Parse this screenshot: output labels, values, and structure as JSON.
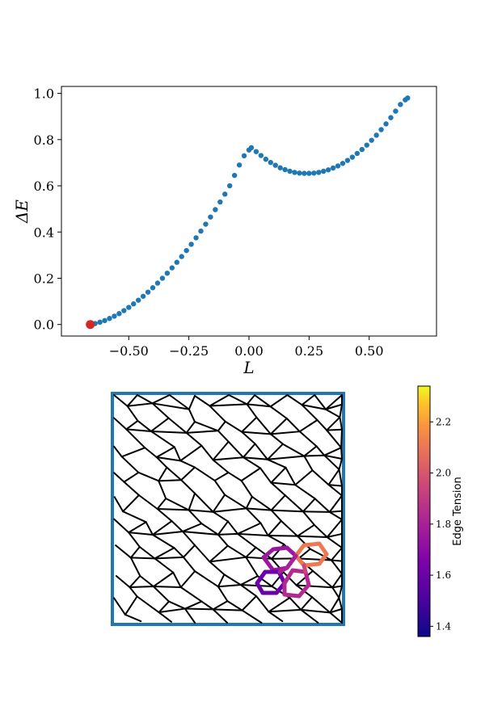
{
  "chart_data": [
    {
      "type": "scatter",
      "title": "",
      "xlabel": "L",
      "ylabel": "ΔE",
      "xlim": [
        -0.78,
        0.78
      ],
      "ylim": [
        -0.05,
        1.03
      ],
      "xticks": [
        -0.5,
        -0.25,
        0.0,
        0.25,
        0.5
      ],
      "xtick_labels": [
        "−0.50",
        "−0.25",
        "0.00",
        "0.25",
        "0.50"
      ],
      "yticks": [
        0.0,
        0.2,
        0.4,
        0.6,
        0.8,
        1.0
      ],
      "ytick_labels": [
        "0.0",
        "0.2",
        "0.4",
        "0.6",
        "0.8",
        "1.0"
      ],
      "grid": false,
      "series": [
        {
          "color": "#1f77b4",
          "x": [
            -0.66,
            -0.64,
            -0.62,
            -0.6,
            -0.58,
            -0.56,
            -0.54,
            -0.52,
            -0.5,
            -0.48,
            -0.46,
            -0.44,
            -0.42,
            -0.4,
            -0.38,
            -0.36,
            -0.34,
            -0.32,
            -0.3,
            -0.28,
            -0.26,
            -0.24,
            -0.22,
            -0.2,
            -0.18,
            -0.16,
            -0.14,
            -0.12,
            -0.1,
            -0.08,
            -0.06,
            -0.04,
            -0.02,
            0.0,
            0.01,
            0.03,
            0.05,
            0.07,
            0.09,
            0.11,
            0.13,
            0.15,
            0.17,
            0.19,
            0.21,
            0.23,
            0.25,
            0.27,
            0.29,
            0.31,
            0.33,
            0.35,
            0.37,
            0.39,
            0.41,
            0.43,
            0.45,
            0.47,
            0.49,
            0.51,
            0.53,
            0.55,
            0.57,
            0.59,
            0.61,
            0.63,
            0.65,
            0.66
          ],
          "y": [
            0.0,
            0.004,
            0.01,
            0.017,
            0.026,
            0.036,
            0.047,
            0.06,
            0.074,
            0.089,
            0.105,
            0.122,
            0.14,
            0.159,
            0.179,
            0.2,
            0.222,
            0.245,
            0.269,
            0.294,
            0.32,
            0.347,
            0.375,
            0.404,
            0.434,
            0.465,
            0.497,
            0.53,
            0.564,
            0.6,
            0.645,
            0.69,
            0.73,
            0.755,
            0.765,
            0.748,
            0.731,
            0.715,
            0.701,
            0.689,
            0.678,
            0.67,
            0.663,
            0.658,
            0.655,
            0.654,
            0.654,
            0.655,
            0.658,
            0.663,
            0.669,
            0.677,
            0.686,
            0.697,
            0.71,
            0.724,
            0.74,
            0.757,
            0.776,
            0.797,
            0.819,
            0.843,
            0.868,
            0.895,
            0.923,
            0.952,
            0.972,
            0.98
          ]
        }
      ],
      "highlight_point": {
        "x": -0.66,
        "y": 0.0,
        "color": "#d62728"
      }
    },
    {
      "type": "heatmap",
      "title": "",
      "description": "cell tissue network with colored edge tensions",
      "frame_color": "#1f77b4",
      "colorbar": {
        "label": "Edge Tension",
        "range": [
          1.36,
          2.34
        ],
        "ticks": [
          1.4,
          1.6,
          1.8,
          2.0,
          2.2
        ],
        "tick_labels": [
          "1.4",
          "1.6",
          "1.8",
          "2.0",
          "2.2"
        ],
        "colormap": "plasma"
      }
    }
  ]
}
